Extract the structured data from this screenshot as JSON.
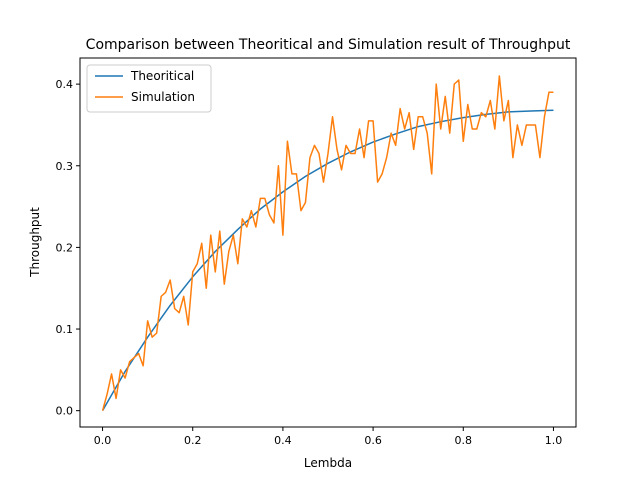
{
  "chart_data": {
    "type": "line",
    "title": "Comparison between Theoritical and Simulation result of Throughput",
    "xlabel": "Lembda",
    "ylabel": "Throughput",
    "xlim": [
      -0.05,
      1.05
    ],
    "ylim": [
      -0.02,
      0.432
    ],
    "xticks": [
      0.0,
      0.2,
      0.4,
      0.6,
      0.8,
      1.0
    ],
    "xtick_labels": [
      "0.0",
      "0.2",
      "0.4",
      "0.6",
      "0.8",
      "1.0"
    ],
    "yticks": [
      0.0,
      0.1,
      0.2,
      0.3,
      0.4
    ],
    "ytick_labels": [
      "0.0",
      "0.1",
      "0.2",
      "0.3",
      "0.4"
    ],
    "grid": false,
    "legend_position": "upper-left",
    "series": [
      {
        "name": "Theoritical",
        "color": "#1f77b4",
        "function": "x*exp(-x)",
        "x": [
          0.0,
          0.05,
          0.1,
          0.15,
          0.2,
          0.25,
          0.3,
          0.35,
          0.4,
          0.45,
          0.5,
          0.55,
          0.6,
          0.65,
          0.7,
          0.75,
          0.8,
          0.85,
          0.9,
          0.95,
          1.0
        ],
        "y": [
          0.0,
          0.048,
          0.09,
          0.129,
          0.164,
          0.195,
          0.222,
          0.247,
          0.268,
          0.287,
          0.303,
          0.317,
          0.329,
          0.339,
          0.348,
          0.354,
          0.359,
          0.363,
          0.366,
          0.367,
          0.368
        ]
      },
      {
        "name": "Simulation",
        "color": "#ff7f0e",
        "x": [
          0.0,
          0.01,
          0.02,
          0.03,
          0.04,
          0.05,
          0.06,
          0.07,
          0.08,
          0.09,
          0.1,
          0.11,
          0.12,
          0.13,
          0.14,
          0.15,
          0.16,
          0.17,
          0.18,
          0.19,
          0.2,
          0.21,
          0.22,
          0.23,
          0.24,
          0.25,
          0.26,
          0.27,
          0.28,
          0.29,
          0.3,
          0.31,
          0.32,
          0.33,
          0.34,
          0.35,
          0.36,
          0.37,
          0.38,
          0.39,
          0.4,
          0.41,
          0.42,
          0.43,
          0.44,
          0.45,
          0.46,
          0.47,
          0.48,
          0.49,
          0.5,
          0.51,
          0.52,
          0.53,
          0.54,
          0.55,
          0.56,
          0.57,
          0.58,
          0.59,
          0.6,
          0.61,
          0.62,
          0.63,
          0.64,
          0.65,
          0.66,
          0.67,
          0.68,
          0.69,
          0.7,
          0.71,
          0.72,
          0.73,
          0.74,
          0.75,
          0.76,
          0.77,
          0.78,
          0.79,
          0.8,
          0.81,
          0.82,
          0.83,
          0.84,
          0.85,
          0.86,
          0.87,
          0.88,
          0.89,
          0.9,
          0.91,
          0.92,
          0.93,
          0.94,
          0.95,
          0.96,
          0.97,
          0.98,
          0.99,
          1.0
        ],
        "y": [
          0.0,
          0.02,
          0.045,
          0.015,
          0.05,
          0.04,
          0.06,
          0.065,
          0.07,
          0.055,
          0.11,
          0.09,
          0.095,
          0.14,
          0.145,
          0.16,
          0.125,
          0.12,
          0.14,
          0.105,
          0.17,
          0.18,
          0.205,
          0.15,
          0.215,
          0.17,
          0.22,
          0.155,
          0.195,
          0.215,
          0.18,
          0.235,
          0.225,
          0.245,
          0.225,
          0.26,
          0.26,
          0.24,
          0.23,
          0.3,
          0.215,
          0.33,
          0.29,
          0.29,
          0.245,
          0.255,
          0.31,
          0.325,
          0.315,
          0.28,
          0.315,
          0.36,
          0.32,
          0.295,
          0.325,
          0.315,
          0.315,
          0.345,
          0.31,
          0.355,
          0.355,
          0.28,
          0.29,
          0.31,
          0.34,
          0.325,
          0.37,
          0.345,
          0.365,
          0.32,
          0.36,
          0.36,
          0.34,
          0.29,
          0.4,
          0.345,
          0.385,
          0.34,
          0.4,
          0.405,
          0.33,
          0.375,
          0.345,
          0.345,
          0.365,
          0.36,
          0.38,
          0.345,
          0.41,
          0.355,
          0.38,
          0.31,
          0.35,
          0.325,
          0.35,
          0.35,
          0.35,
          0.31,
          0.36,
          0.39,
          0.39
        ]
      }
    ]
  }
}
